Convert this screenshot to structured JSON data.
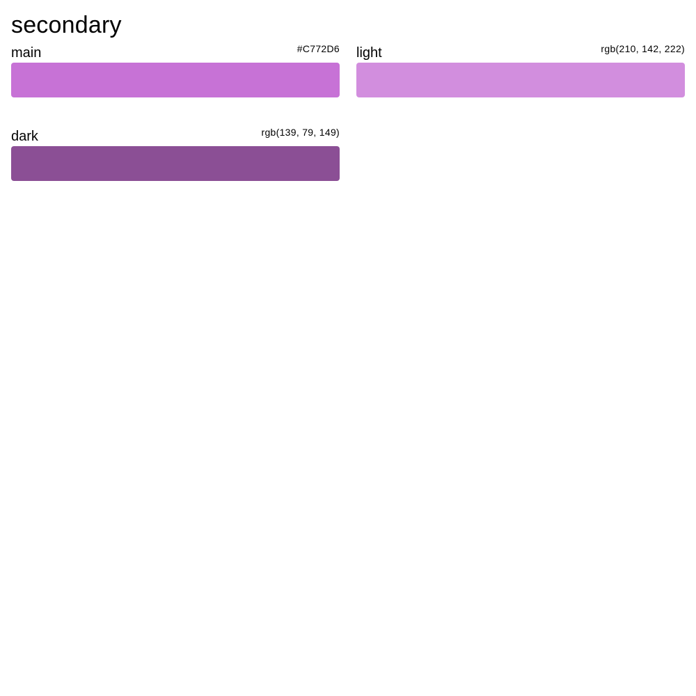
{
  "palette": {
    "title": "secondary",
    "swatches": [
      {
        "name": "main",
        "value": "#C772D6",
        "color": "#C772D6"
      },
      {
        "name": "light",
        "value": "rgb(210, 142, 222)",
        "color": "#D28EDE"
      },
      {
        "name": "dark",
        "value": "rgb(139, 79, 149)",
        "color": "#8B4F95"
      }
    ]
  }
}
